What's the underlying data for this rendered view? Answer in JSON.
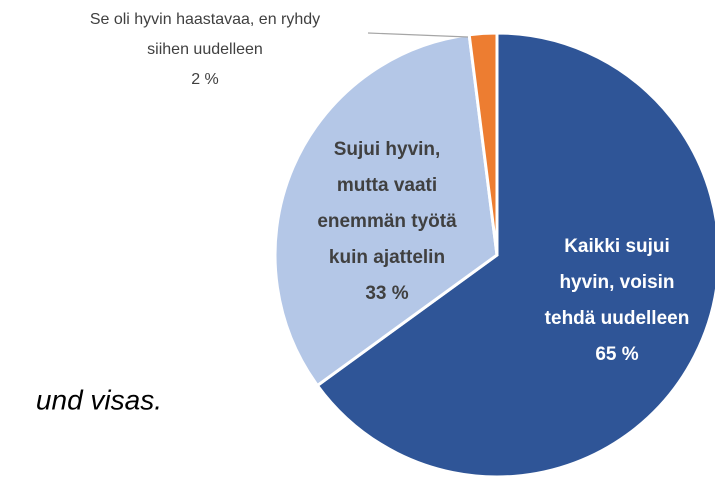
{
  "page_text": "und visas.",
  "chart_data": {
    "type": "pie",
    "categories": [
      "Kaikki sujui hyvin, voisin tehdä uudelleen",
      "Sujui hyvin, mutta vaati enemmän työtä kuin ajattelin",
      "Se oli hyvin haastavaa, en ryhdy siihen uudelleen"
    ],
    "values": [
      65,
      33,
      2
    ],
    "value_labels": [
      "65 %",
      "33 %",
      "2 %"
    ],
    "colors": [
      "#2f5597",
      "#b4c7e7",
      "#ed7d31"
    ]
  }
}
